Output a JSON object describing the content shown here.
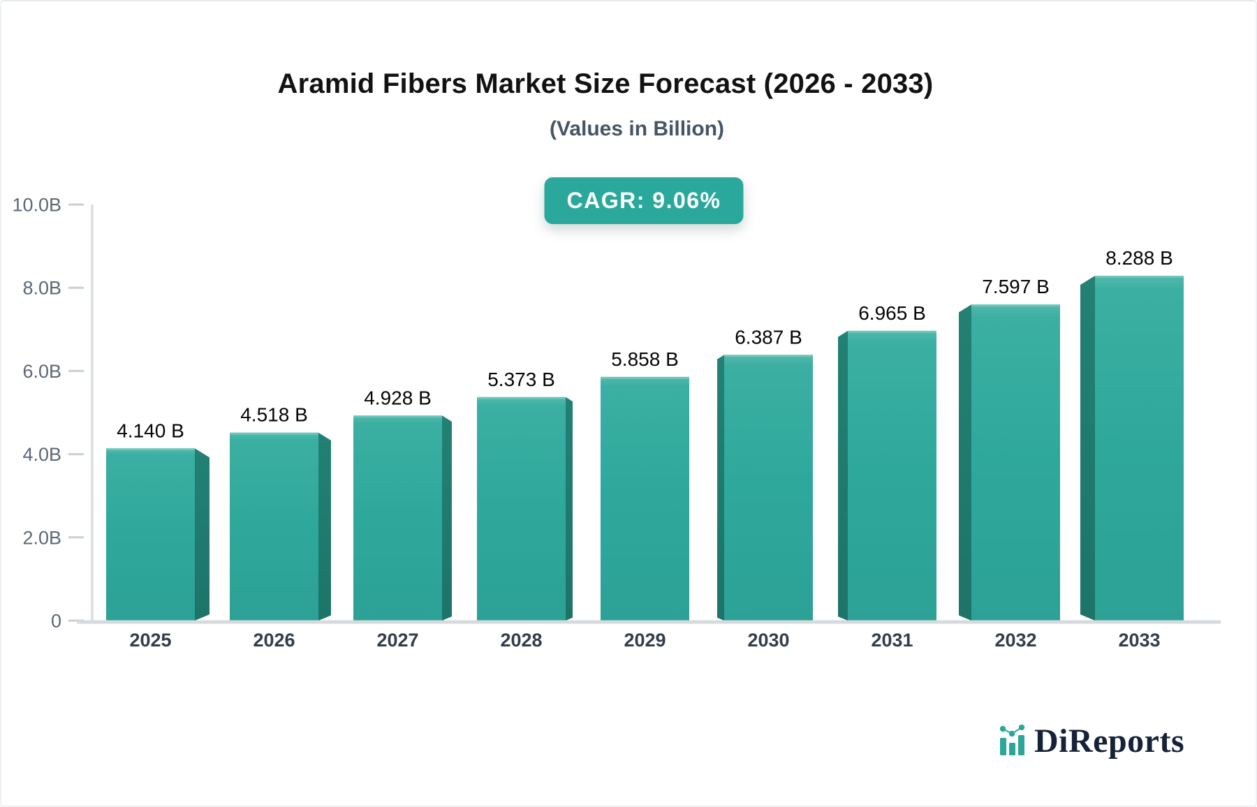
{
  "header": {
    "title": "Aramid Fibers Market Size Forecast (2026 - 2033)",
    "subtitle": "(Values in Billion)"
  },
  "badge": {
    "label": "CAGR: 9.06%",
    "bg_color": "#2aa89b",
    "text_color": "#ffffff"
  },
  "chart_data": {
    "type": "bar",
    "title": "Aramid Fibers Market Size Forecast (2026 - 2033)",
    "subtitle": "(Values in Billion)",
    "categories": [
      "2025",
      "2026",
      "2027",
      "2028",
      "2029",
      "2030",
      "2031",
      "2032",
      "2033"
    ],
    "values": [
      4.14,
      4.518,
      4.928,
      5.373,
      5.858,
      6.387,
      6.965,
      7.597,
      8.288
    ],
    "value_labels": [
      "4.140 B",
      "4.518 B",
      "4.928 B",
      "5.373 B",
      "5.858 B",
      "6.387 B",
      "6.965 B",
      "7.597 B",
      "8.288 B"
    ],
    "xlabel": "",
    "ylabel": "",
    "ylim": [
      0,
      10
    ],
    "y_ticks": [
      {
        "value": 0,
        "label": "0"
      },
      {
        "value": 2,
        "label": "2.0B"
      },
      {
        "value": 4,
        "label": "4.0B"
      },
      {
        "value": 6,
        "label": "6.0B"
      },
      {
        "value": 8,
        "label": "8.0B"
      },
      {
        "value": 10,
        "label": "10.0B"
      }
    ],
    "grid": false,
    "legend": false,
    "bar_color": "#2ea89b",
    "bar_side_color": "#1f7d72",
    "effect": "3d-perspective"
  },
  "logo": {
    "text": "DiReports",
    "accent_color": "#2aa79a",
    "text_color": "#152238"
  }
}
